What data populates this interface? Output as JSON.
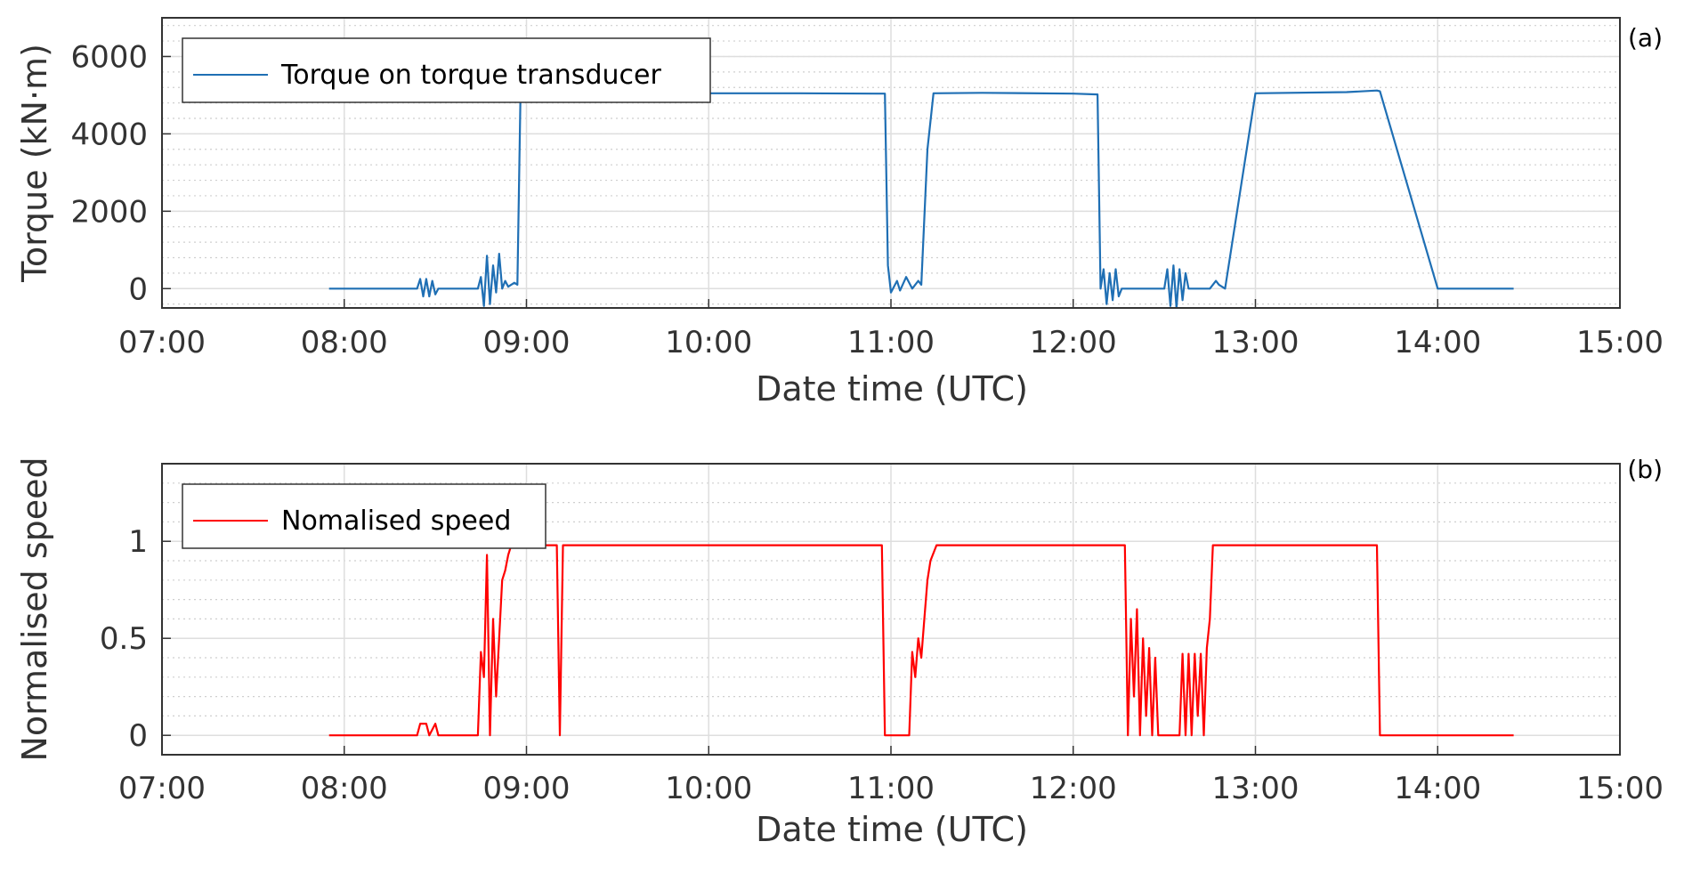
{
  "chart_data": [
    {
      "type": "line",
      "panel_label": "(a)",
      "xlabel": "Date time (UTC)",
      "ylabel": "Torque (kN·m)",
      "xlim": [
        "07:00",
        "15:00"
      ],
      "x_ticks": [
        "07:00",
        "08:00",
        "09:00",
        "10:00",
        "11:00",
        "12:00",
        "13:00",
        "14:00",
        "15:00"
      ],
      "ylim": [
        -500,
        7000
      ],
      "y_ticks": [
        0,
        2000,
        4000,
        6000
      ],
      "y_tick_labels": [
        "0",
        "2000",
        "4000",
        "6000"
      ],
      "grid": true,
      "minor_grid": true,
      "legend_position": "top-left",
      "series": [
        {
          "name": "Torque on torque transducer",
          "color": "#1f6fb4",
          "x": [
            "07:55",
            "08:24",
            "08:25",
            "08:26",
            "08:27",
            "08:28",
            "08:29",
            "08:30",
            "08:31",
            "08:44",
            "08:45",
            "08:46",
            "08:47",
            "08:48",
            "08:49",
            "08:50",
            "08:51",
            "08:52",
            "08:53",
            "08:54",
            "08:56",
            "08:57",
            "08:58",
            "08:59",
            "09:00",
            "09:30",
            "10:00",
            "10:30",
            "10:55",
            "10:58",
            "10:59",
            "11:00",
            "11:02",
            "11:03",
            "11:05",
            "11:07",
            "11:09",
            "11:10",
            "11:12",
            "11:14",
            "11:30",
            "12:00",
            "12:08",
            "12:09",
            "12:10",
            "12:11",
            "12:12",
            "12:13",
            "12:14",
            "12:15",
            "12:16",
            "12:20",
            "12:30",
            "12:31",
            "12:32",
            "12:33",
            "12:34",
            "12:35",
            "12:36",
            "12:37",
            "12:38",
            "12:40",
            "12:45",
            "12:47",
            "12:48",
            "12:50",
            "13:00",
            "13:30",
            "13:40",
            "13:41",
            "14:00",
            "14:25"
          ],
          "y": [
            0,
            0,
            250,
            -200,
            250,
            -200,
            200,
            -150,
            0,
            0,
            300,
            -450,
            850,
            -400,
            600,
            -100,
            900,
            0,
            200,
            50,
            150,
            100,
            4900,
            5050,
            5050,
            5060,
            5050,
            5050,
            5040,
            5040,
            600,
            -100,
            200,
            -50,
            300,
            0,
            200,
            100,
            3600,
            5050,
            5060,
            5040,
            5020,
            0,
            500,
            -400,
            400,
            -300,
            500,
            -200,
            0,
            0,
            0,
            500,
            -450,
            600,
            -500,
            500,
            -300,
            400,
            0,
            0,
            0,
            200,
            100,
            0,
            5050,
            5080,
            5120,
            5100,
            0,
            0
          ]
        }
      ]
    },
    {
      "type": "line",
      "panel_label": "(b)",
      "xlabel": "Date time (UTC)",
      "ylabel": "Normalised speed",
      "xlim": [
        "07:00",
        "15:00"
      ],
      "x_ticks": [
        "07:00",
        "08:00",
        "09:00",
        "10:00",
        "11:00",
        "12:00",
        "13:00",
        "14:00",
        "15:00"
      ],
      "ylim": [
        -0.1,
        1.4
      ],
      "y_ticks": [
        0,
        0.5,
        1
      ],
      "y_tick_labels": [
        "0",
        "0.5",
        "1"
      ],
      "grid": true,
      "minor_grid": true,
      "legend_position": "top-left",
      "series": [
        {
          "name": "Nomalised speed",
          "color": "#ff0000",
          "x": [
            "07:55",
            "08:24",
            "08:25",
            "08:27",
            "08:28",
            "08:30",
            "08:31",
            "08:44",
            "08:45",
            "08:46",
            "08:47",
            "08:48",
            "08:49",
            "08:50",
            "08:51",
            "08:52",
            "08:53",
            "08:54",
            "08:55",
            "08:56",
            "08:57",
            "08:58",
            "08:59",
            "09:00",
            "09:10",
            "09:11",
            "09:12",
            "09:30",
            "10:00",
            "10:30",
            "10:57",
            "10:58",
            "11:06",
            "11:07",
            "11:08",
            "11:09",
            "11:10",
            "11:11",
            "11:12",
            "11:13",
            "11:15",
            "11:17",
            "11:18",
            "11:19",
            "11:20",
            "11:30",
            "12:00",
            "12:17",
            "12:18",
            "12:19",
            "12:20",
            "12:21",
            "12:22",
            "12:23",
            "12:24",
            "12:25",
            "12:26",
            "12:27",
            "12:28",
            "12:29",
            "12:30",
            "12:35",
            "12:36",
            "12:37",
            "12:38",
            "12:39",
            "12:40",
            "12:41",
            "12:42",
            "12:43",
            "12:44",
            "12:45",
            "12:46",
            "12:48",
            "12:50",
            "13:00",
            "13:30",
            "13:40",
            "13:41",
            "14:00",
            "14:25"
          ],
          "y": [
            0,
            0,
            0.06,
            0.06,
            0,
            0.06,
            0,
            0,
            0.43,
            0.3,
            0.93,
            0,
            0.6,
            0.2,
            0.5,
            0.8,
            0.85,
            0.93,
            0.98,
            0.98,
            0.98,
            0.98,
            0.98,
            0.98,
            0.98,
            0,
            0.98,
            0.98,
            0.98,
            0.98,
            0.98,
            0,
            0,
            0.43,
            0.3,
            0.5,
            0.4,
            0.6,
            0.8,
            0.9,
            0.98,
            0.98,
            0.98,
            0.98,
            0.98,
            0.98,
            0.98,
            0.98,
            0,
            0.6,
            0.2,
            0.65,
            0,
            0.5,
            0.1,
            0.45,
            0,
            0.4,
            0,
            0,
            0,
            0,
            0.42,
            0,
            0.42,
            0,
            0.42,
            0.1,
            0.42,
            0,
            0.45,
            0.6,
            0.98,
            0.98,
            0.98,
            0.98,
            0.98,
            0.98,
            0,
            0,
            0
          ]
        }
      ]
    }
  ]
}
